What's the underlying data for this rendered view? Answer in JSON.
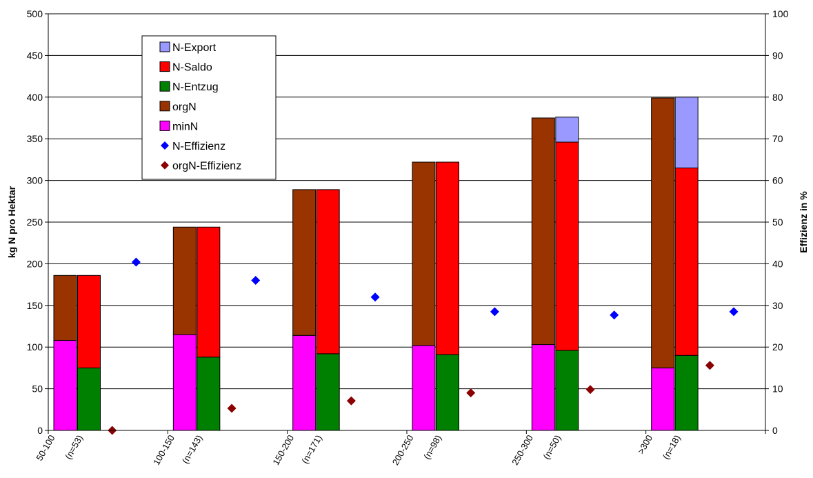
{
  "chart_data": {
    "type": "bar",
    "groups": [
      "50-100",
      "100-150",
      "150-200",
      "200-250",
      "250-300",
      ">300"
    ],
    "group_counts": [
      "(n=53)",
      "(n=143)",
      "(n=171)",
      "(n=98)",
      "(n=50)",
      "(n=18)"
    ],
    "ylabel_left": "kg N pro Hektar",
    "ylabel_right": "Effizienz in %",
    "ylim_left": [
      0,
      500
    ],
    "ylim_right": [
      0,
      100
    ],
    "yticks_left": [
      "0",
      "50",
      "100",
      "150",
      "200",
      "250",
      "300",
      "350",
      "400",
      "450",
      "500"
    ],
    "yticks_right": [
      "0",
      "10",
      "20",
      "30",
      "40",
      "50",
      "60",
      "70",
      "80",
      "90",
      "100"
    ],
    "grid": true,
    "legend_position": "top-left",
    "input_stack": {
      "minN": [
        108,
        115,
        114,
        102,
        103,
        75
      ],
      "orgN": [
        78,
        129,
        175,
        220,
        272,
        324
      ]
    },
    "output_stack": {
      "N-Entzug": [
        75,
        88,
        92,
        91,
        96,
        90
      ],
      "N-Saldo": [
        111,
        156,
        197,
        231,
        250,
        225
      ],
      "N-Export": [
        0,
        0,
        0,
        0,
        30,
        85
      ]
    },
    "scatter": {
      "N-Effizienz": [
        40.4,
        36,
        32,
        28.5,
        27.7,
        28.5
      ],
      "orgN-Effizienz": [
        0,
        5.3,
        7.1,
        9,
        9.8,
        15.6
      ]
    },
    "legend": [
      {
        "label": "N-Export",
        "kind": "box",
        "color": "#9999ff"
      },
      {
        "label": "N-Saldo",
        "kind": "box",
        "color": "#ff0000"
      },
      {
        "label": "N-Entzug",
        "kind": "box",
        "color": "#008000"
      },
      {
        "label": "orgN",
        "kind": "box",
        "color": "#993300"
      },
      {
        "label": "minN",
        "kind": "box",
        "color": "#ff00ff"
      },
      {
        "label": "N-Effizienz",
        "kind": "diamond",
        "color": "#0000ff"
      },
      {
        "label": "orgN-Effizienz",
        "kind": "diamond",
        "color": "#8b0000"
      }
    ],
    "colors": {
      "minN": "#ff00ff",
      "orgN": "#993300",
      "N-Entzug": "#008000",
      "N-Saldo": "#ff0000",
      "N-Export": "#9999ff",
      "N-Effizienz": "#0000ff",
      "orgN-Effizienz": "#8b0000"
    }
  }
}
